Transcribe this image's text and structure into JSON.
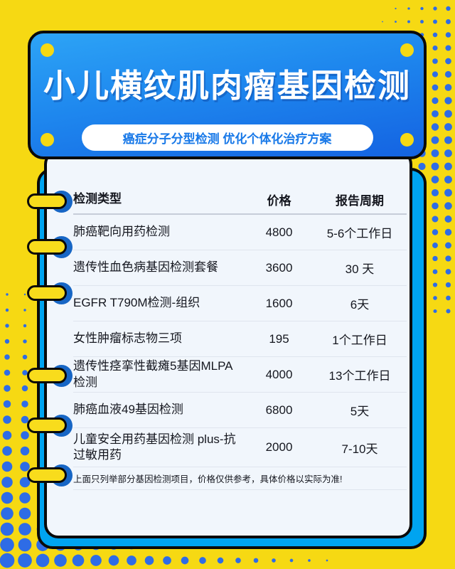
{
  "poster": {
    "title": "小儿横纹肌肉瘤基因检测",
    "subtitle": "癌症分子分型检测 优化个体化治疗方案"
  },
  "table": {
    "columns": {
      "type": "检测类型",
      "price": "价格",
      "period": "报告周期"
    },
    "rows": [
      {
        "name": "肺癌靶向用药检测",
        "price": "4800",
        "period": "5-6个工作日"
      },
      {
        "name": "遗传性血色病基因检测套餐",
        "price": "3600",
        "period": "30 天"
      },
      {
        "name": "EGFR T790M检测-组织",
        "price": "1600",
        "period": "6天"
      },
      {
        "name": "女性肿瘤标志物三项",
        "price": "195",
        "period": "1个工作日"
      },
      {
        "name": "遗传性痉挛性截瘫5基因MLPA检测",
        "price": "4000",
        "period": "13个工作日"
      },
      {
        "name": "肺癌血液49基因检测",
        "price": "6800",
        "period": "5天"
      },
      {
        "name": "儿童安全用药基因检测 plus-抗过敏用药",
        "price": "2000",
        "period": "7-10天"
      }
    ],
    "note": "上面只列举部分基因检测项目，价格仅供参考，具体价格以实际为准!"
  },
  "theme": {
    "background_yellow": "#F6D913",
    "dot_blue": "#2E6CE6",
    "ring_blue": "#1766C5",
    "accent_cyan": "#00A4F0",
    "header_blue_top": "#2DA4F6",
    "header_blue_bottom": "#1463E2",
    "subtitle_blue": "#1778E8",
    "card_bg": "#F1F6FC",
    "text_dark": "#15171F"
  }
}
